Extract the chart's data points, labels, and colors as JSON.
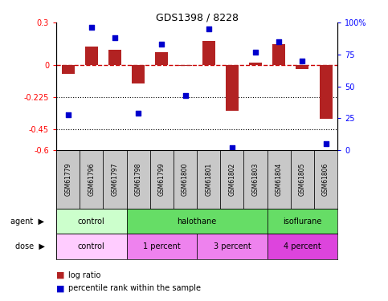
{
  "title": "GDS1398 / 8228",
  "samples": [
    "GSM61779",
    "GSM61796",
    "GSM61797",
    "GSM61798",
    "GSM61799",
    "GSM61800",
    "GSM61801",
    "GSM61802",
    "GSM61803",
    "GSM61804",
    "GSM61805",
    "GSM61806"
  ],
  "log_ratio": [
    -0.06,
    0.13,
    0.11,
    -0.13,
    0.09,
    -0.005,
    0.17,
    -0.32,
    0.02,
    0.15,
    -0.03,
    -0.38
  ],
  "percentile": [
    28,
    96,
    88,
    29,
    83,
    43,
    95,
    2,
    77,
    85,
    70,
    5
  ],
  "bar_color": "#B22222",
  "dot_color": "#0000CD",
  "zero_line_color": "#CC0000",
  "ylim_left": [
    -0.6,
    0.3
  ],
  "ylim_right": [
    0,
    100
  ],
  "yticks_left": [
    0.3,
    0.0,
    -0.225,
    -0.45,
    -0.6
  ],
  "yticks_left_labels": [
    "0.3",
    "0",
    "-0.225",
    "-0.45",
    "-0.6"
  ],
  "yticks_right": [
    100,
    75,
    50,
    25,
    0
  ],
  "yticks_right_labels": [
    "100%",
    "75",
    "50",
    "25",
    "0"
  ],
  "agent_groups": [
    {
      "label": "control",
      "start": 0,
      "end": 3,
      "color": "#CCFFCC"
    },
    {
      "label": "halothane",
      "start": 3,
      "end": 9,
      "color": "#66DD66"
    },
    {
      "label": "isoflurane",
      "start": 9,
      "end": 12,
      "color": "#66DD66"
    }
  ],
  "dose_groups": [
    {
      "label": "control",
      "start": 0,
      "end": 3,
      "color": "#FFCCFF"
    },
    {
      "label": "1 percent",
      "start": 3,
      "end": 6,
      "color": "#EE82EE"
    },
    {
      "label": "3 percent",
      "start": 6,
      "end": 9,
      "color": "#EE82EE"
    },
    {
      "label": "4 percent",
      "start": 9,
      "end": 12,
      "color": "#DD44DD"
    }
  ],
  "sample_bg": "#C8C8C8",
  "legend_items": [
    {
      "label": "log ratio",
      "color": "#B22222"
    },
    {
      "label": "percentile rank within the sample",
      "color": "#0000CD"
    }
  ]
}
